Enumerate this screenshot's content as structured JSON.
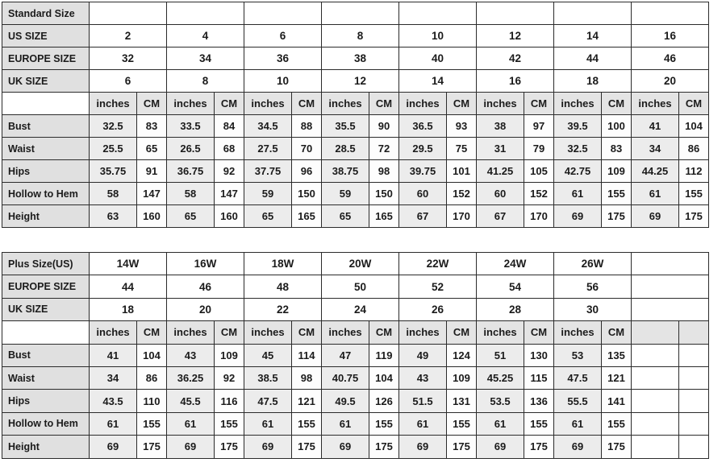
{
  "colors": {
    "page_background": "#ffffff",
    "label_cell_bg": "#e0e0e0",
    "unit_header_bg": "#e4e4e4",
    "inches_cell_bg": "#ececec",
    "cm_cell_bg": "#fdfdfd",
    "border": "#2b2b2b",
    "text": "#1b1b1b"
  },
  "standard_table": {
    "header_rows": [
      {
        "label": "Standard Size",
        "values": [
          "",
          "",
          "",
          "",
          "",
          "",
          "",
          ""
        ]
      },
      {
        "label": "US SIZE",
        "values": [
          "2",
          "4",
          "6",
          "8",
          "10",
          "12",
          "14",
          "16"
        ]
      },
      {
        "label": "EUROPE SIZE",
        "values": [
          "32",
          "34",
          "36",
          "38",
          "40",
          "42",
          "44",
          "46"
        ]
      },
      {
        "label": "UK SIZE",
        "values": [
          "6",
          "8",
          "10",
          "12",
          "14",
          "16",
          "18",
          "20"
        ]
      }
    ],
    "unit_row": {
      "label": "",
      "units": [
        [
          "inches",
          "CM"
        ],
        [
          "inches",
          "CM"
        ],
        [
          "inches",
          "CM"
        ],
        [
          "inches",
          "CM"
        ],
        [
          "inches",
          "CM"
        ],
        [
          "inches",
          "CM"
        ],
        [
          "inches",
          "CM"
        ],
        [
          "inches",
          "CM"
        ]
      ]
    },
    "measure_rows": [
      {
        "label": "Bust",
        "pairs": [
          [
            "32.5",
            "83"
          ],
          [
            "33.5",
            "84"
          ],
          [
            "34.5",
            "88"
          ],
          [
            "35.5",
            "90"
          ],
          [
            "36.5",
            "93"
          ],
          [
            "38",
            "97"
          ],
          [
            "39.5",
            "100"
          ],
          [
            "41",
            "104"
          ]
        ]
      },
      {
        "label": "Waist",
        "pairs": [
          [
            "25.5",
            "65"
          ],
          [
            "26.5",
            "68"
          ],
          [
            "27.5",
            "70"
          ],
          [
            "28.5",
            "72"
          ],
          [
            "29.5",
            "75"
          ],
          [
            "31",
            "79"
          ],
          [
            "32.5",
            "83"
          ],
          [
            "34",
            "86"
          ]
        ]
      },
      {
        "label": "Hips",
        "pairs": [
          [
            "35.75",
            "91"
          ],
          [
            "36.75",
            "92"
          ],
          [
            "37.75",
            "96"
          ],
          [
            "38.75",
            "98"
          ],
          [
            "39.75",
            "101"
          ],
          [
            "41.25",
            "105"
          ],
          [
            "42.75",
            "109"
          ],
          [
            "44.25",
            "112"
          ]
        ]
      },
      {
        "label": "Hollow to Hem",
        "pairs": [
          [
            "58",
            "147"
          ],
          [
            "58",
            "147"
          ],
          [
            "59",
            "150"
          ],
          [
            "59",
            "150"
          ],
          [
            "60",
            "152"
          ],
          [
            "60",
            "152"
          ],
          [
            "61",
            "155"
          ],
          [
            "61",
            "155"
          ]
        ]
      },
      {
        "label": "Height",
        "pairs": [
          [
            "63",
            "160"
          ],
          [
            "65",
            "160"
          ],
          [
            "65",
            "165"
          ],
          [
            "65",
            "165"
          ],
          [
            "67",
            "170"
          ],
          [
            "67",
            "170"
          ],
          [
            "69",
            "175"
          ],
          [
            "69",
            "175"
          ]
        ]
      }
    ]
  },
  "plus_table": {
    "header_rows": [
      {
        "label": "Plus Size(US)",
        "values": [
          "14W",
          "16W",
          "18W",
          "20W",
          "22W",
          "24W",
          "26W",
          ""
        ]
      },
      {
        "label": "EUROPE SIZE",
        "values": [
          "44",
          "46",
          "48",
          "50",
          "52",
          "54",
          "56",
          ""
        ]
      },
      {
        "label": "UK SIZE",
        "values": [
          "18",
          "20",
          "22",
          "24",
          "26",
          "28",
          "30",
          ""
        ]
      }
    ],
    "unit_row": {
      "label": "",
      "units": [
        [
          "inches",
          "CM"
        ],
        [
          "inches",
          "CM"
        ],
        [
          "inches",
          "CM"
        ],
        [
          "inches",
          "CM"
        ],
        [
          "inches",
          "CM"
        ],
        [
          "inches",
          "CM"
        ],
        [
          "inches",
          "CM"
        ],
        [
          "",
          ""
        ]
      ]
    },
    "measure_rows": [
      {
        "label": "Bust",
        "pairs": [
          [
            "41",
            "104"
          ],
          [
            "43",
            "109"
          ],
          [
            "45",
            "114"
          ],
          [
            "47",
            "119"
          ],
          [
            "49",
            "124"
          ],
          [
            "51",
            "130"
          ],
          [
            "53",
            "135"
          ],
          [
            "",
            ""
          ]
        ]
      },
      {
        "label": "Waist",
        "pairs": [
          [
            "34",
            "86"
          ],
          [
            "36.25",
            "92"
          ],
          [
            "38.5",
            "98"
          ],
          [
            "40.75",
            "104"
          ],
          [
            "43",
            "109"
          ],
          [
            "45.25",
            "115"
          ],
          [
            "47.5",
            "121"
          ],
          [
            "",
            ""
          ]
        ]
      },
      {
        "label": "Hips",
        "pairs": [
          [
            "43.5",
            "110"
          ],
          [
            "45.5",
            "116"
          ],
          [
            "47.5",
            "121"
          ],
          [
            "49.5",
            "126"
          ],
          [
            "51.5",
            "131"
          ],
          [
            "53.5",
            "136"
          ],
          [
            "55.5",
            "141"
          ],
          [
            "",
            ""
          ]
        ]
      },
      {
        "label": "Hollow to Hem",
        "pairs": [
          [
            "61",
            "155"
          ],
          [
            "61",
            "155"
          ],
          [
            "61",
            "155"
          ],
          [
            "61",
            "155"
          ],
          [
            "61",
            "155"
          ],
          [
            "61",
            "155"
          ],
          [
            "61",
            "155"
          ],
          [
            "",
            ""
          ]
        ]
      },
      {
        "label": "Height",
        "pairs": [
          [
            "69",
            "175"
          ],
          [
            "69",
            "175"
          ],
          [
            "69",
            "175"
          ],
          [
            "69",
            "175"
          ],
          [
            "69",
            "175"
          ],
          [
            "69",
            "175"
          ],
          [
            "69",
            "175"
          ],
          [
            "",
            ""
          ]
        ]
      }
    ]
  }
}
